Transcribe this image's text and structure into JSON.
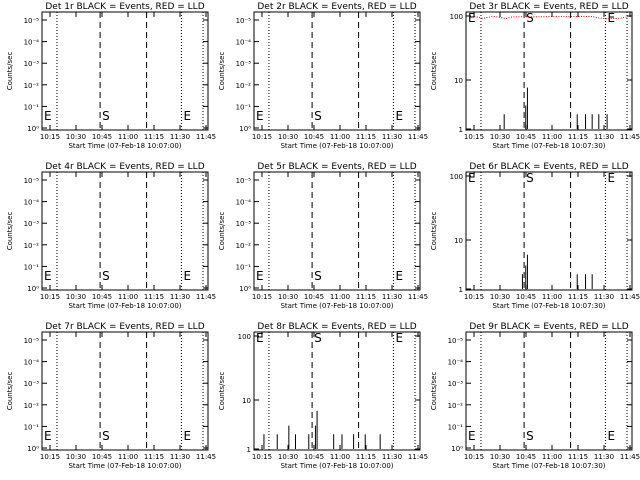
{
  "chart_data": [
    {
      "type": "line",
      "title": "Det 1r BLACK = Events, RED = LLD",
      "xlabel": "Start Time (07-Feb-18 10:07:00)",
      "ylabel": "Counts/sec",
      "scale": "log",
      "ytick_labels": [
        "10⁰",
        "10⁻¹",
        "10⁻²",
        "10⁻³",
        "10⁻⁴",
        "10⁻⁵"
      ],
      "xtick_labels": [
        "10:15",
        "10:30",
        "10:45",
        "11:00",
        "11:15",
        "11:30",
        "11:45"
      ],
      "markers": [
        "E",
        "S",
        "E"
      ],
      "events": [],
      "lld": []
    },
    {
      "type": "line",
      "title": "Det 2r BLACK = Events, RED = LLD",
      "xlabel": "Start Time (07-Feb-18 10:07:00)",
      "ylabel": "Counts/sec",
      "scale": "log",
      "ytick_labels": [
        "10⁰",
        "10⁻¹",
        "10⁻²",
        "10⁻³",
        "10⁻⁴",
        "10⁻⁵"
      ],
      "xtick_labels": [
        "10:15",
        "10:30",
        "10:45",
        "11:00",
        "11:15",
        "11:30",
        "11:45"
      ],
      "markers": [
        "E",
        "S",
        "E"
      ],
      "events": [],
      "lld": []
    },
    {
      "type": "line",
      "title": "Det 3r BLACK = Events, RED = LLD",
      "xlabel": "Start Time (07-Feb-18 10:07:30)",
      "ylabel": "Counts/sec",
      "scale": "linear-log",
      "ytick_labels": [
        "100",
        "10",
        "1"
      ],
      "xtick_labels": [
        "10:15",
        "10:30",
        "10:45",
        "11:00",
        "11:15",
        "11:30",
        "11:45"
      ],
      "markers": [
        "E",
        "S",
        "E"
      ],
      "events": [
        [
          0.2,
          1
        ],
        [
          0.23,
          2
        ],
        [
          0.35,
          1
        ],
        [
          0.36,
          3
        ],
        [
          0.37,
          7
        ],
        [
          0.38,
          1
        ],
        [
          0.67,
          2
        ],
        [
          0.7,
          1
        ],
        [
          0.72,
          2
        ],
        [
          0.74,
          1
        ],
        [
          0.76,
          2
        ],
        [
          0.78,
          1
        ],
        [
          0.8,
          2
        ],
        [
          0.82,
          1
        ],
        [
          0.85,
          2
        ]
      ],
      "lld": [
        [
          0.05,
          98
        ],
        [
          0.1,
          80
        ],
        [
          0.16,
          96
        ],
        [
          0.2,
          90
        ],
        [
          0.24,
          78
        ],
        [
          0.28,
          93
        ],
        [
          0.76,
          96
        ],
        [
          0.8,
          84
        ],
        [
          0.85,
          77
        ],
        [
          0.92,
          80
        ],
        [
          0.97,
          92
        ]
      ]
    },
    {
      "type": "line",
      "title": "Det 4r BLACK = Events, RED = LLD",
      "xlabel": "Start Time (07-Feb-18 10:07:00)",
      "ylabel": "Counts/sec",
      "scale": "log",
      "ytick_labels": [
        "10⁰",
        "10⁻¹",
        "10⁻²",
        "10⁻³",
        "10⁻⁴",
        "10⁻⁵"
      ],
      "xtick_labels": [
        "10:15",
        "10:30",
        "10:45",
        "11:00",
        "11:15",
        "11:30",
        "11:45"
      ],
      "markers": [
        "E",
        "S",
        "E"
      ],
      "events": [],
      "lld": []
    },
    {
      "type": "line",
      "title": "Det 5r BLACK = Events, RED = LLD",
      "xlabel": "Start Time (07-Feb-18 10:07:00)",
      "ylabel": "Counts/sec",
      "scale": "log",
      "ytick_labels": [
        "10⁰",
        "10⁻¹",
        "10⁻²",
        "10⁻³",
        "10⁻⁴",
        "10⁻⁵"
      ],
      "xtick_labels": [
        "10:15",
        "10:30",
        "10:45",
        "11:00",
        "11:15",
        "11:30",
        "11:45"
      ],
      "markers": [
        "E",
        "S",
        "E"
      ],
      "events": [],
      "lld": []
    },
    {
      "type": "line",
      "title": "Det 6r BLACK = Events, RED = LLD",
      "xlabel": "Start Time (07-Feb-18 10:07:30)",
      "ylabel": "Counts/sec",
      "scale": "linear-log",
      "ytick_labels": [
        "100",
        "10",
        "1"
      ],
      "xtick_labels": [
        "10:15",
        "10:30",
        "10:45",
        "11:00",
        "11:15",
        "11:30",
        "11:45"
      ],
      "markers": [
        "E",
        "S",
        "E"
      ],
      "events": [
        [
          0.34,
          2
        ],
        [
          0.36,
          3
        ],
        [
          0.37,
          5
        ],
        [
          0.38,
          1
        ],
        [
          0.67,
          2
        ],
        [
          0.7,
          1
        ],
        [
          0.72,
          2
        ],
        [
          0.74,
          1
        ],
        [
          0.76,
          2
        ]
      ],
      "lld": []
    },
    {
      "type": "line",
      "title": "Det 7r BLACK = Events, RED = LLD",
      "xlabel": "Start Time (07-Feb-18 10:07:00)",
      "ylabel": "Counts/sec",
      "scale": "log",
      "ytick_labels": [
        "10⁰",
        "10⁻¹",
        "10⁻²",
        "10⁻³",
        "10⁻⁴",
        "10⁻⁵"
      ],
      "xtick_labels": [
        "10:15",
        "10:30",
        "10:45",
        "11:00",
        "11:15",
        "11:30",
        "11:45"
      ],
      "markers": [
        "E",
        "S",
        "E"
      ],
      "events": [],
      "lld": []
    },
    {
      "type": "line",
      "title": "Det 8r BLACK = Events, RED = LLD",
      "xlabel": "Start Time (07-Feb-18 10:07:00)",
      "ylabel": "Counts/sec",
      "scale": "linear-log",
      "ytick_labels": [
        "100",
        "10",
        "1"
      ],
      "xtick_labels": [
        "10:15",
        "10:30",
        "10:45",
        "11:00",
        "11:15",
        "11:30",
        "11:45"
      ],
      "markers": [
        "E",
        "S",
        "E"
      ],
      "events": [
        [
          0.06,
          2
        ],
        [
          0.1,
          1
        ],
        [
          0.14,
          2
        ],
        [
          0.18,
          1
        ],
        [
          0.21,
          3
        ],
        [
          0.25,
          2
        ],
        [
          0.29,
          1
        ],
        [
          0.33,
          2
        ],
        [
          0.37,
          3
        ],
        [
          0.38,
          6
        ],
        [
          0.39,
          1
        ],
        [
          0.48,
          2
        ],
        [
          0.51,
          1
        ],
        [
          0.53,
          2
        ],
        [
          0.56,
          1
        ],
        [
          0.6,
          2
        ],
        [
          0.64,
          1
        ],
        [
          0.67,
          2
        ],
        [
          0.72,
          1
        ],
        [
          0.76,
          2
        ],
        [
          0.8,
          1
        ]
      ],
      "lld": []
    },
    {
      "type": "line",
      "title": "Det 9r BLACK = Events, RED = LLD",
      "xlabel": "Start Time (07-Feb-18 10:07:30)",
      "ylabel": "Counts/sec",
      "scale": "log",
      "ytick_labels": [
        "10⁰",
        "10⁻¹",
        "10⁻²",
        "10⁻³",
        "10⁻⁴",
        "10⁻⁵"
      ],
      "xtick_labels": [
        "10:15",
        "10:30",
        "10:45",
        "11:00",
        "11:15",
        "11:30",
        "11:45"
      ],
      "markers": [
        "E",
        "S",
        "E"
      ],
      "events": [],
      "lld": []
    }
  ],
  "colors": {
    "events": "#000000",
    "lld": "#d00000",
    "background": "#ffffff"
  }
}
